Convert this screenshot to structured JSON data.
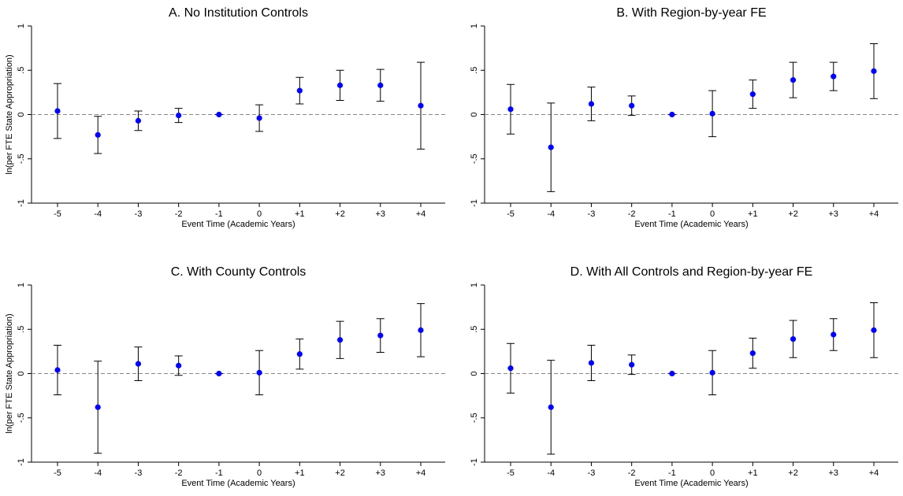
{
  "chart_data": [
    {
      "type": "errorbar",
      "title": "A. No Institution Controls",
      "ylabel": "ln(per FTE State Appropriation)",
      "xlabel": "Event Time (Academic Years)",
      "categories": [
        "-5",
        "-4",
        "-3",
        "-2",
        "-1",
        "0",
        "+1",
        "+2",
        "+3",
        "+4"
      ],
      "values": [
        0.04,
        -0.23,
        -0.07,
        -0.01,
        0,
        -0.04,
        0.27,
        0.33,
        0.33,
        0.1
      ],
      "errors": [
        0.31,
        0.21,
        0.11,
        0.08,
        0,
        0.15,
        0.15,
        0.17,
        0.18,
        0.49
      ],
      "color": "#0000ff",
      "errorbar_color": "#000000",
      "reference_line": 0,
      "ylim": [
        -1,
        1
      ],
      "yticks": [
        -1,
        {
          "value": -0.5,
          "label": "-.5"
        },
        0,
        {
          "value": 0.5,
          "label": ".5"
        },
        1
      ]
    },
    {
      "type": "errorbar",
      "title": "B. With Region-by-year FE",
      "xlabel": "Event Time (Academic Years)",
      "categories": [
        "-5",
        "-4",
        "-3",
        "-2",
        "-1",
        "0",
        "+1",
        "+2",
        "+3",
        "+4"
      ],
      "values": [
        0.06,
        -0.37,
        0.12,
        0.1,
        0,
        0.01,
        0.23,
        0.39,
        0.43,
        0.49
      ],
      "errors": [
        0.28,
        0.5,
        0.19,
        0.11,
        0,
        0.26,
        0.16,
        0.2,
        0.16,
        0.31
      ],
      "color": "#0000ff",
      "errorbar_color": "#000000",
      "reference_line": 0,
      "ylim": [
        -1,
        1
      ],
      "yticks": [
        -1,
        {
          "value": -0.5,
          "label": "-.5"
        },
        0,
        {
          "value": 0.5,
          "label": ".5"
        },
        1
      ]
    },
    {
      "type": "errorbar",
      "title": "C. With County Controls",
      "ylabel": "ln(per FTE State Appropriation)",
      "xlabel": "Event Time (Academic Years)",
      "categories": [
        "-5",
        "-4",
        "-3",
        "-2",
        "-1",
        "0",
        "+1",
        "+2",
        "+3",
        "+4"
      ],
      "values": [
        0.04,
        -0.38,
        0.11,
        0.09,
        0,
        0.01,
        0.22,
        0.38,
        0.43,
        0.49
      ],
      "errors": [
        0.28,
        0.52,
        0.19,
        0.11,
        0,
        0.25,
        0.17,
        0.21,
        0.19,
        0.3
      ],
      "color": "#0000ff",
      "errorbar_color": "#000000",
      "reference_line": 0,
      "ylim": [
        -1,
        1
      ],
      "yticks": [
        -1,
        {
          "value": -0.5,
          "label": "-.5"
        },
        0,
        {
          "value": 0.5,
          "label": ".5"
        },
        1
      ]
    },
    {
      "type": "errorbar",
      "title": "D. With All Controls and Region-by-year FE",
      "xlabel": "Event Time (Academic Years)",
      "categories": [
        "-5",
        "-4",
        "-3",
        "-2",
        "-1",
        "0",
        "+1",
        "+2",
        "+3",
        "+4"
      ],
      "values": [
        0.06,
        -0.38,
        0.12,
        0.1,
        0,
        0.01,
        0.23,
        0.39,
        0.44,
        0.49
      ],
      "errors": [
        0.28,
        0.53,
        0.2,
        0.11,
        0,
        0.25,
        0.17,
        0.21,
        0.18,
        0.31
      ],
      "color": "#0000ff",
      "errorbar_color": "#000000",
      "reference_line": 0,
      "ylim": [
        -1,
        1
      ],
      "yticks": [
        -1,
        {
          "value": -0.5,
          "label": "-.5"
        },
        0,
        {
          "value": 0.5,
          "label": ".5"
        },
        1
      ]
    }
  ]
}
